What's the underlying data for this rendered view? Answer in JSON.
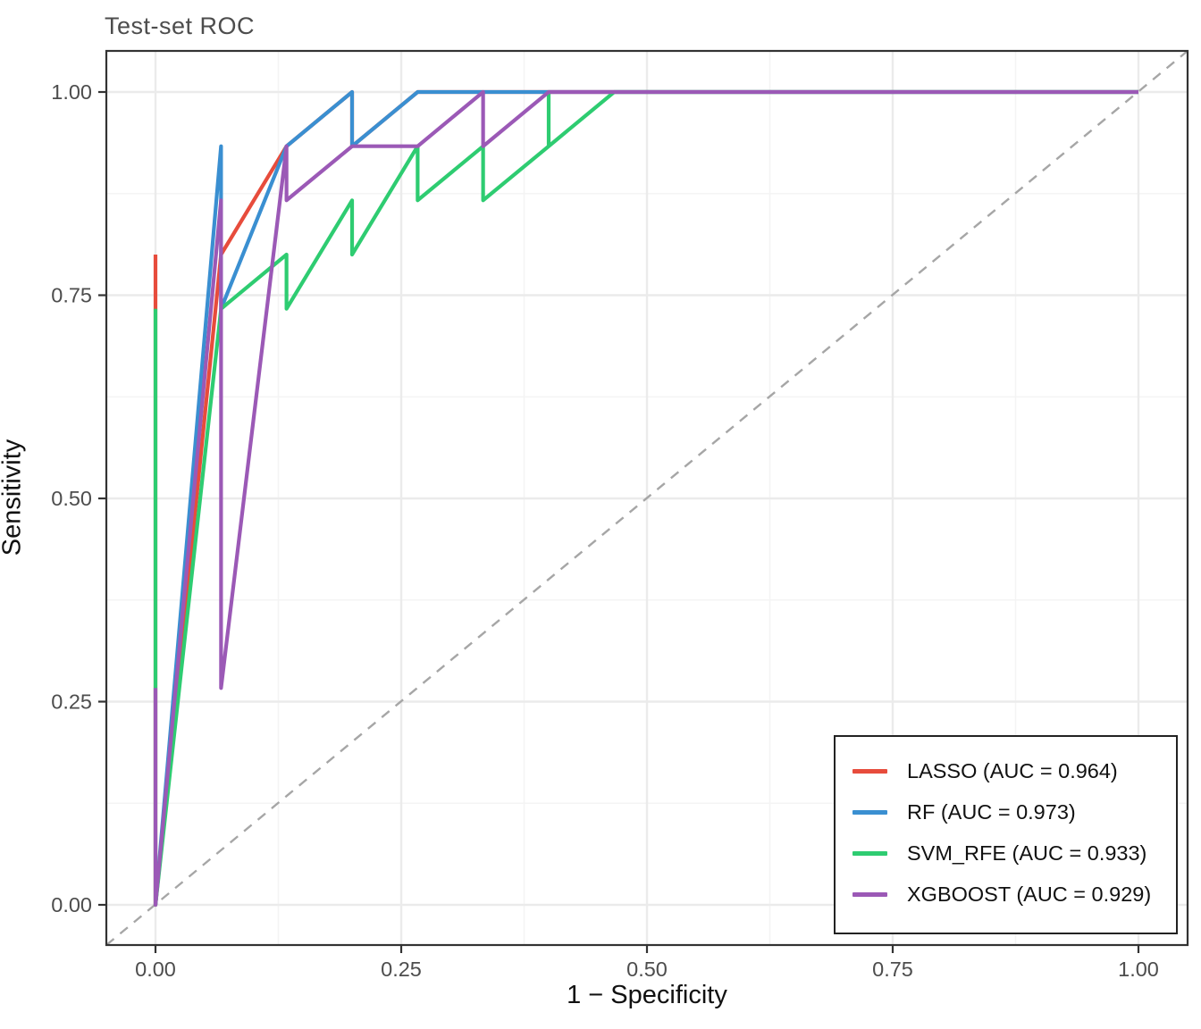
{
  "title": "Test-set ROC",
  "axes": {
    "x": {
      "label": "1 − Specificity",
      "tick_labels": [
        "0.00",
        "0.25",
        "0.50",
        "0.75",
        "1.00"
      ],
      "tick_values": [
        0,
        0.25,
        0.5,
        0.75,
        1
      ],
      "minor_values": [
        0.125,
        0.375,
        0.625,
        0.875
      ],
      "range": [
        -0.05,
        1.05
      ]
    },
    "y": {
      "label": "Sensitivity",
      "tick_labels": [
        "0.00",
        "0.25",
        "0.50",
        "0.75",
        "1.00"
      ],
      "tick_values": [
        0,
        0.25,
        0.5,
        0.75,
        1
      ],
      "minor_values": [
        0.125,
        0.375,
        0.625,
        0.875
      ],
      "range": [
        -0.05,
        1.05
      ]
    }
  },
  "style_colors": {
    "panel_background": "#ffffff",
    "grid_major": "#ebebeb",
    "grid_minor": "#f4f4f4",
    "panel_border": "#333333",
    "tick_mark": "#333333",
    "tick_label": "#4d4d4d",
    "reference_line": "#a6a6a6",
    "title": "#4d4d4d"
  },
  "reference_line": {
    "type": "diagonal",
    "style": "dashed",
    "from": [
      0,
      0
    ],
    "to": [
      1,
      1
    ]
  },
  "chart_data": {
    "type": "line",
    "subtype": "roc-curves",
    "title": "Test-set ROC",
    "xlabel": "1 − Specificity",
    "ylabel": "Sensitivity",
    "xlim": [
      -0.05,
      1.05
    ],
    "ylim": [
      -0.05,
      1.05
    ],
    "grid": "major+minor",
    "legend_position": "inside-bottom-right",
    "series": [
      {
        "name": "LASSO",
        "auc": 0.964,
        "legend_label": "LASSO (AUC = 0.964)",
        "color": "#e74c3c",
        "points": [
          [
            0,
            0.8
          ],
          [
            0,
            0
          ],
          [
            0.0667,
            0.8
          ],
          [
            0.1333,
            0.9333
          ],
          [
            0.2,
            1
          ],
          [
            0.2,
            0.9333
          ],
          [
            0.2667,
            1
          ],
          [
            1,
            1
          ]
        ]
      },
      {
        "name": "RF",
        "auc": 0.973,
        "legend_label": "RF (AUC = 0.973)",
        "color": "#3a8fd1",
        "points": [
          [
            0,
            0
          ],
          [
            0.0667,
            0.9333
          ],
          [
            0.0667,
            0.7333
          ],
          [
            0.1333,
            0.9333
          ],
          [
            0.2,
            1
          ],
          [
            0.2,
            0.9333
          ],
          [
            0.2667,
            1
          ],
          [
            1,
            1
          ]
        ]
      },
      {
        "name": "SVM_RFE",
        "auc": 0.933,
        "legend_label": "SVM_RFE (AUC = 0.933)",
        "color": "#2ecc71",
        "points": [
          [
            0,
            0.7333
          ],
          [
            0,
            0
          ],
          [
            0.0667,
            0.7333
          ],
          [
            0.1333,
            0.8
          ],
          [
            0.1333,
            0.7333
          ],
          [
            0.2,
            0.8667
          ],
          [
            0.2,
            0.8
          ],
          [
            0.2667,
            0.9333
          ],
          [
            0.2667,
            0.8667
          ],
          [
            0.3333,
            0.9333
          ],
          [
            0.3333,
            0.8667
          ],
          [
            0.4,
            0.9333
          ],
          [
            0.4,
            1
          ],
          [
            0.4,
            0.9333
          ],
          [
            0.4667,
            1
          ],
          [
            1,
            1
          ]
        ]
      },
      {
        "name": "XGBOOST",
        "auc": 0.929,
        "legend_label": "XGBOOST (AUC = 0.929)",
        "color": "#9b59b6",
        "points": [
          [
            0,
            0.2667
          ],
          [
            0,
            0
          ],
          [
            0.0667,
            0.8667
          ],
          [
            0.0667,
            0.2667
          ],
          [
            0.1333,
            0.9333
          ],
          [
            0.1333,
            0.8667
          ],
          [
            0.2,
            0.9333
          ],
          [
            0.2667,
            0.9333
          ],
          [
            0.3333,
            1
          ],
          [
            0.3333,
            0.9333
          ],
          [
            0.4,
            1
          ],
          [
            1,
            1
          ]
        ]
      }
    ]
  }
}
